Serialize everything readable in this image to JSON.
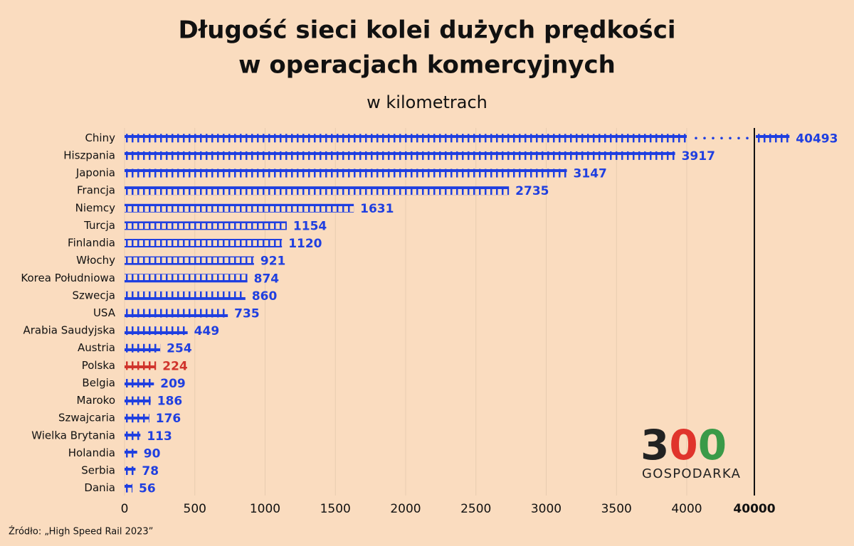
{
  "chart_data": {
    "type": "bar",
    "orientation": "horizontal",
    "title": "Długość sieci kolei dużych prędkości",
    "title_line2": "w operacjach komercyjnych",
    "subtitle": "w kilometrach",
    "categories": [
      "Chiny",
      "Hiszpania",
      "Japonia",
      "Francja",
      "Niemcy",
      "Turcja",
      "Finlandia",
      "Włochy",
      "Korea Południowa",
      "Szwecja",
      "USA",
      "Arabia Saudyjska",
      "Austria",
      "Polska",
      "Belgia",
      "Maroko",
      "Szwajcaria",
      "Wielka Brytania",
      "Holandia",
      "Serbia",
      "Dania"
    ],
    "values": [
      40493,
      3917,
      3147,
      2735,
      1631,
      1154,
      1120,
      921,
      874,
      860,
      735,
      449,
      254,
      224,
      209,
      186,
      176,
      113,
      90,
      78,
      56
    ],
    "color": "#1f3fe0",
    "highlight": {
      "category": "Polska",
      "color": "#d0342c"
    },
    "xlim": [
      0,
      4000
    ],
    "xticks": [
      0,
      500,
      1000,
      1500,
      2000,
      2500,
      3000,
      3500,
      4000
    ],
    "axis_break": {
      "xlim": [
        39800,
        40500
      ],
      "xticks": [
        40000
      ]
    },
    "grid": true,
    "source": "Źródło: „High Speed Rail 2023”",
    "logo": {
      "digits": [
        "3",
        "0",
        "0"
      ],
      "digit_colors": [
        "#222222",
        "#e0342c",
        "#3a9a48"
      ],
      "name": "GOSPODARKA"
    }
  }
}
